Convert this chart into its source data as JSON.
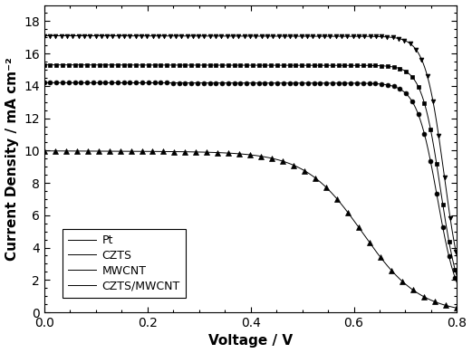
{
  "title": "",
  "xlabel": "Voltage / V",
  "ylabel": "Current Density / mA cm⁻²",
  "xlim": [
    0.0,
    0.8
  ],
  "ylim": [
    0.0,
    19.0
  ],
  "xticks": [
    0.0,
    0.2,
    0.4,
    0.6,
    0.8
  ],
  "yticks": [
    0,
    2,
    4,
    6,
    8,
    10,
    12,
    14,
    16,
    18
  ],
  "series": {
    "Pt": {
      "Jsc": 15.3,
      "Voc": 0.768,
      "n": 55,
      "slope_factor": 0.003,
      "marker": "s",
      "marker_size": 3.5,
      "n_markers": 70
    },
    "CZTS": {
      "Jsc": 14.2,
      "Voc": 0.762,
      "n": 50,
      "slope_factor": 0.003,
      "marker": "o",
      "marker_size": 3.5,
      "n_markers": 70
    },
    "MWCNT": {
      "Jsc": 9.98,
      "Voc": 0.617,
      "n": 18,
      "slope_factor": 0.012,
      "marker": "^",
      "marker_size": 4.0,
      "n_markers": 40
    },
    "CZTS/MWCNT": {
      "Jsc": 17.1,
      "Voc": 0.775,
      "n": 55,
      "slope_factor": 0.003,
      "marker": "v",
      "marker_size": 3.5,
      "n_markers": 75
    }
  },
  "legend_loc": "lower left",
  "background_color": "white",
  "figure_size": [
    5.21,
    3.9
  ],
  "dpi": 100
}
